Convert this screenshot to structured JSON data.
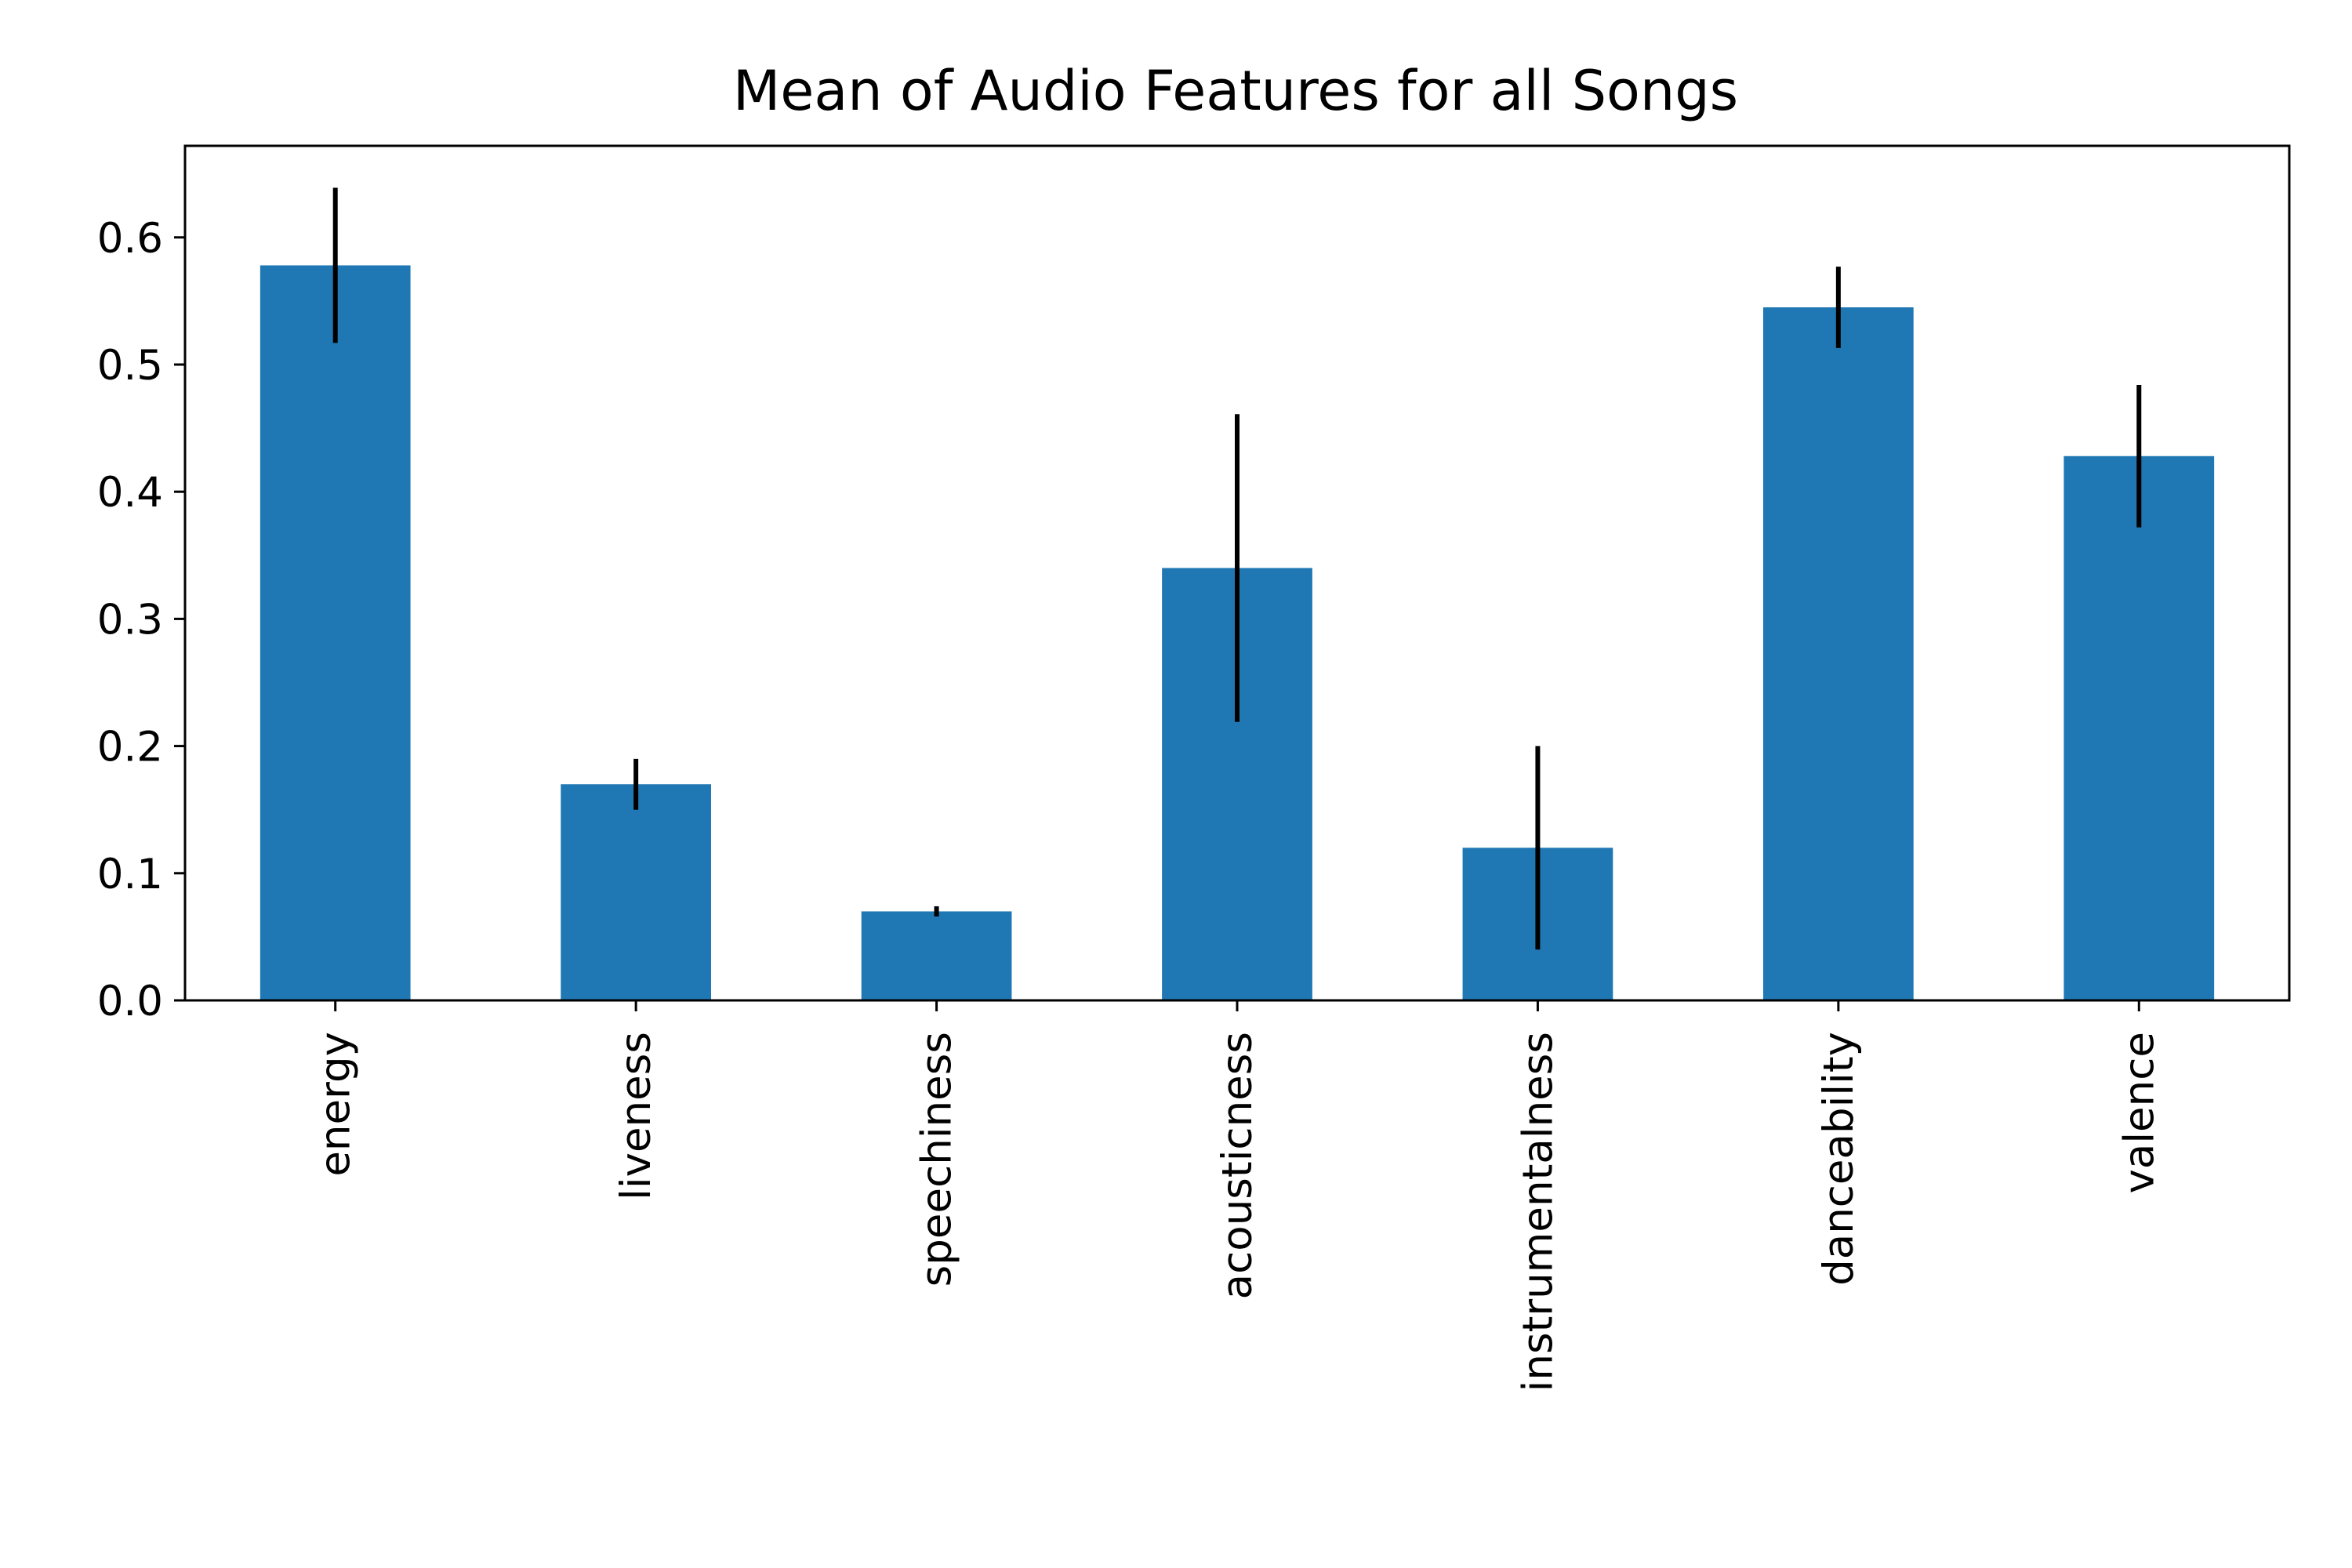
{
  "chart_data": {
    "type": "bar",
    "title": "Mean of Audio Features for all Songs",
    "xlabel": "",
    "ylabel": "",
    "categories": [
      "energy",
      "liveness",
      "speechiness",
      "acousticness",
      "instrumentalness",
      "danceability",
      "valence"
    ],
    "values": [
      0.578,
      0.17,
      0.07,
      0.34,
      0.12,
      0.545,
      0.428
    ],
    "errors": [
      0.061,
      0.02,
      0.004,
      0.121,
      0.08,
      0.032,
      0.056
    ],
    "ylim": [
      0,
      0.672
    ],
    "yticks": [
      "0.0",
      "0.1",
      "0.2",
      "0.3",
      "0.4",
      "0.5",
      "0.6"
    ],
    "ytick_values": [
      0,
      0.1,
      0.2,
      0.3,
      0.4,
      0.5,
      0.6
    ],
    "grid": false,
    "bar_color": "#1f77b4",
    "error_color": "#000000"
  }
}
